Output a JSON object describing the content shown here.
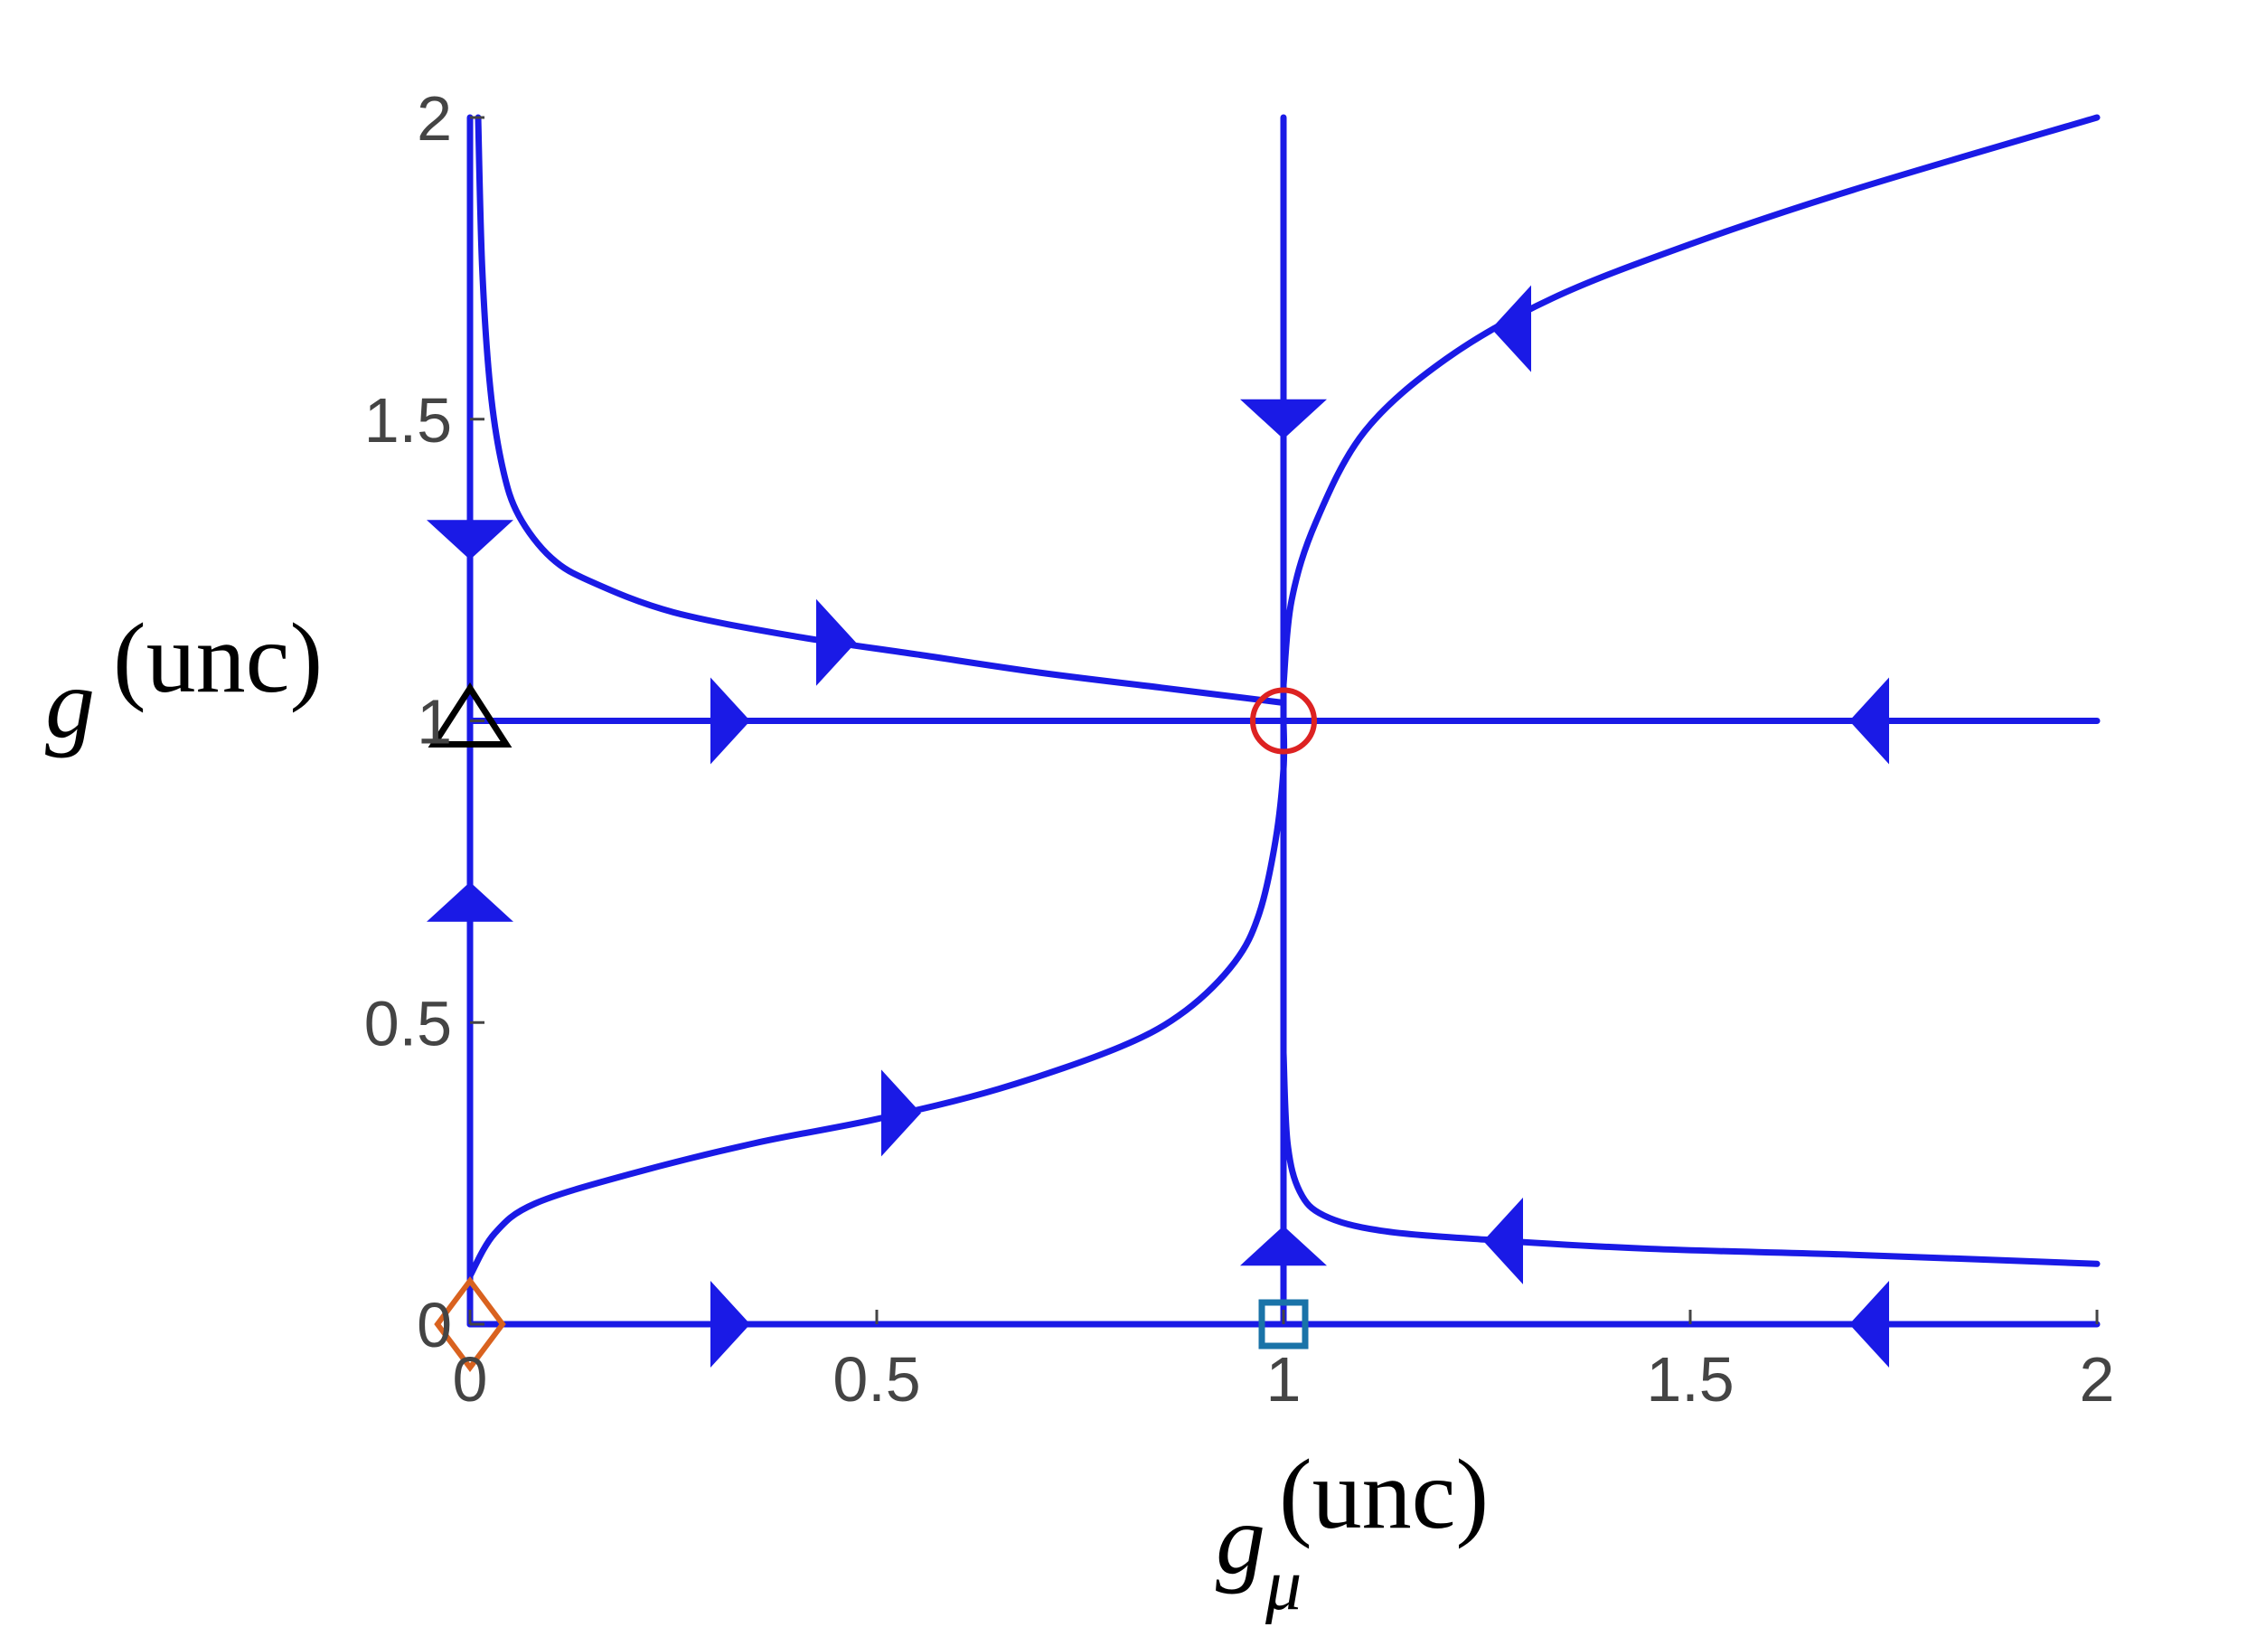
{
  "chart_data": {
    "type": "line",
    "title": "",
    "xlabel": {
      "base": "g",
      "subscript": "μ",
      "superscript": "(unc)"
    },
    "ylabel": {
      "base": "g",
      "superscript": "(unc)"
    },
    "xlim": [
      0,
      2
    ],
    "ylim": [
      0,
      2
    ],
    "x_ticks": [
      0,
      0.5,
      1,
      1.5,
      2
    ],
    "x_tick_labels": [
      "0",
      "0.5",
      "1",
      "1.5",
      "2"
    ],
    "y_ticks": [
      0,
      0.5,
      1,
      1.5,
      2
    ],
    "y_tick_labels": [
      "0",
      "0.5",
      "1",
      "1.5",
      "2"
    ],
    "grid": false,
    "line_color": "#1a1ae6",
    "series": [
      {
        "points": [
          [
            0,
            0
          ],
          [
            0,
            2
          ]
        ],
        "arrows": [
          {
            "at": [
              0,
              1.3
            ],
            "dir": "down"
          },
          {
            "at": [
              0,
              0.7
            ],
            "dir": "up"
          }
        ]
      },
      {
        "points": [
          [
            1,
            0
          ],
          [
            1,
            2
          ]
        ],
        "arrows": [
          {
            "at": [
              1,
              1.5
            ],
            "dir": "down"
          },
          {
            "at": [
              1,
              0.13
            ],
            "dir": "up"
          }
        ]
      },
      {
        "points": [
          [
            0,
            1
          ],
          [
            2,
            1
          ]
        ],
        "arrows": [
          {
            "at": [
              0.32,
              1
            ],
            "dir": "right"
          },
          {
            "at": [
              1.72,
              1
            ],
            "dir": "left"
          }
        ]
      },
      {
        "points": [
          [
            0,
            0
          ],
          [
            2,
            0
          ]
        ],
        "arrows": [
          {
            "at": [
              0.32,
              0
            ],
            "dir": "right"
          },
          {
            "at": [
              1.72,
              0
            ],
            "dir": "left"
          }
        ]
      },
      {
        "points": [
          [
            0.01,
            2.0
          ],
          [
            0.015,
            1.75
          ],
          [
            0.025,
            1.55
          ],
          [
            0.04,
            1.42
          ],
          [
            0.06,
            1.34
          ],
          [
            0.1,
            1.27
          ],
          [
            0.15,
            1.23
          ],
          [
            0.25,
            1.18
          ],
          [
            0.4,
            1.14
          ],
          [
            0.55,
            1.11
          ],
          [
            0.7,
            1.08
          ],
          [
            0.85,
            1.055
          ],
          [
            1.0,
            1.03
          ]
        ],
        "arrows": [
          {
            "at": [
              0.45,
              1.13
            ],
            "dir": "right"
          }
        ]
      },
      {
        "points": [
          [
            0,
            0.08
          ],
          [
            0.03,
            0.15
          ],
          [
            0.08,
            0.2
          ],
          [
            0.2,
            0.25
          ],
          [
            0.35,
            0.3
          ],
          [
            0.5,
            0.34
          ],
          [
            0.65,
            0.39
          ],
          [
            0.8,
            0.46
          ],
          [
            0.88,
            0.52
          ],
          [
            0.94,
            0.6
          ],
          [
            0.97,
            0.68
          ],
          [
            0.99,
            0.8
          ],
          [
            1.0,
            0.92
          ],
          [
            1.0,
            1.0
          ]
        ],
        "arrows": [
          {
            "at": [
              0.53,
              0.35
            ],
            "dir": "right"
          }
        ]
      },
      {
        "points": [
          [
            1.0,
            1.06
          ],
          [
            1.01,
            1.2
          ],
          [
            1.04,
            1.33
          ],
          [
            1.1,
            1.48
          ],
          [
            1.2,
            1.6
          ],
          [
            1.33,
            1.7
          ],
          [
            1.5,
            1.79
          ],
          [
            1.7,
            1.88
          ],
          [
            2.0,
            2.0
          ]
        ],
        "arrows": [
          {
            "at": [
              1.28,
              1.65
            ],
            "dir": "left"
          }
        ]
      },
      {
        "points": [
          [
            1.0,
            0.45
          ],
          [
            1.005,
            0.3
          ],
          [
            1.02,
            0.22
          ],
          [
            1.05,
            0.18
          ],
          [
            1.12,
            0.155
          ],
          [
            1.25,
            0.14
          ],
          [
            1.45,
            0.125
          ],
          [
            1.7,
            0.115
          ],
          [
            2.0,
            0.1
          ]
        ],
        "arrows": [
          {
            "at": [
              1.27,
              0.138
            ],
            "dir": "left"
          }
        ]
      }
    ],
    "markers": [
      {
        "name": "triangle",
        "x": 0,
        "y": 1,
        "color": "#000000"
      },
      {
        "name": "circle",
        "x": 1,
        "y": 1,
        "color": "#dd2222"
      },
      {
        "name": "diamond",
        "x": 0,
        "y": 0,
        "color": "#d9621f"
      },
      {
        "name": "square",
        "x": 1,
        "y": 0,
        "color": "#1a73a8"
      }
    ]
  }
}
